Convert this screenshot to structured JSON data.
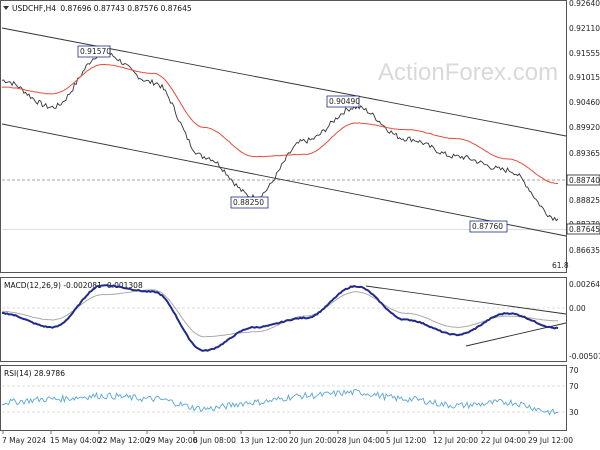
{
  "header": {
    "symbol_menu_icon": "triangle-down-icon",
    "title": "USDCHF,H4",
    "ohlc": "0.87696 0.87743 0.87576 0.87645"
  },
  "watermark": "ActionForex.com",
  "colors": {
    "price": "#333333",
    "ma": "#e74c3c",
    "channel": "#333333",
    "macd_line": "#1f2a8a",
    "macd_signal": "#aaaaaa",
    "rsi": "#5aa6d8",
    "label_border": "#1f2a8a",
    "dotted": "#999999"
  },
  "chart_data": [
    {
      "type": "line",
      "title": "USDCHF,H4",
      "x": [
        "7 May 2024",
        "15 May 04:00",
        "22 May 12:00",
        "29 May 20:00",
        "6 Jun 08:00",
        "13 Jun 12:00",
        "20 Jun 20:00",
        "28 Jun 04:00",
        "5 Jul 12:00",
        "12 Jul 20:00",
        "22 Jul 04:00",
        "29 Jul 12:00"
      ],
      "series": [
        {
          "values": [
            0.909,
            0.903,
            0.915,
            0.9085,
            0.892,
            0.883,
            0.8955,
            0.903,
            0.896,
            0.892,
            0.889,
            0.8782
          ]
        },
        {
          "values": [
            0.9075,
            0.906,
            0.9125,
            0.9105,
            0.8985,
            0.892,
            0.8925,
            0.8995,
            0.898,
            0.896,
            0.8915,
            0.886
          ]
        }
      ],
      "ylim": [
        0.86635,
        0.9264
      ],
      "yticks": [
        "0.92640",
        "0.92110",
        "0.91555",
        "0.91015",
        "0.90460",
        "0.89920",
        "0.89365",
        "0.88825",
        "0.88270"
      ],
      "price_tags": [
        "0.88740",
        "0.87645"
      ],
      "bottom_label": "0.86635",
      "level_label": "61.8",
      "annotations": [
        "0.91570",
        "0.90490",
        "0.88250",
        "0.87760"
      ]
    },
    {
      "type": "line",
      "title": "MACD(12,26,9) -0.002081 -0.001308",
      "series": [
        {
          "values": [
            -0.0005,
            -0.002,
            0.0025,
            0.0018,
            -0.0045,
            -0.002,
            -0.001,
            0.0024,
            -0.0012,
            -0.0028,
            -0.0005,
            -0.0021
          ]
        },
        {
          "values": [
            -0.0003,
            -0.0012,
            0.0015,
            0.002,
            -0.003,
            -0.0025,
            -0.0008,
            0.0018,
            -0.0005,
            -0.002,
            -0.0008,
            -0.0013
          ]
        }
      ],
      "yticks": [
        "0.00264",
        "0.00",
        "-0.005077"
      ]
    },
    {
      "type": "line",
      "title": "RSI(14) 28.9786",
      "series": [
        {
          "values": [
            45,
            50,
            55,
            50,
            35,
            45,
            55,
            60,
            50,
            40,
            45,
            29
          ]
        }
      ],
      "ylim": [
        0,
        100
      ],
      "yticks": [
        "70",
        "30"
      ]
    }
  ]
}
